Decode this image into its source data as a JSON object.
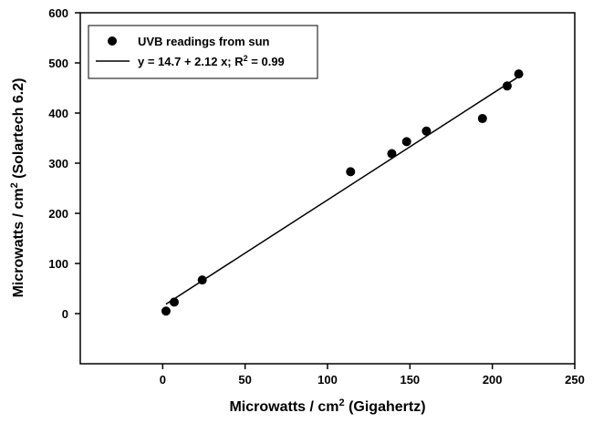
{
  "chart_data": {
    "type": "scatter",
    "xlabel_main": "Microwatts / cm",
    "xlabel_sup": "2",
    "xlabel_tail": " (Gigahertz)",
    "ylabel_main": "Microwatts / cm",
    "ylabel_sup": "2",
    "ylabel_tail": " (Solartech 6.2)",
    "xlim": [
      -50,
      250
    ],
    "ylim": [
      -100,
      600
    ],
    "xticks": [
      0,
      50,
      100,
      150,
      200,
      250
    ],
    "yticks": [
      0,
      100,
      200,
      300,
      400,
      500,
      600
    ],
    "grid": false,
    "legend_position": "top-left",
    "series": [
      {
        "name": "UVB readings from sun",
        "marker": "filled-circle",
        "color": "#000000",
        "x": [
          2,
          7,
          24,
          114,
          139,
          148,
          160,
          194,
          209,
          216
        ],
        "y": [
          5,
          23,
          67,
          283,
          319,
          343,
          364,
          389,
          454,
          478
        ]
      }
    ],
    "fit_line": {
      "legend_text_main": "y = 14.7 + 2.12 x; R",
      "legend_text_sup": "2",
      "legend_text_tail": " = 0.99",
      "intercept": 14.7,
      "slope": 2.12,
      "x_range": [
        2,
        216
      ],
      "color": "#000000"
    }
  }
}
